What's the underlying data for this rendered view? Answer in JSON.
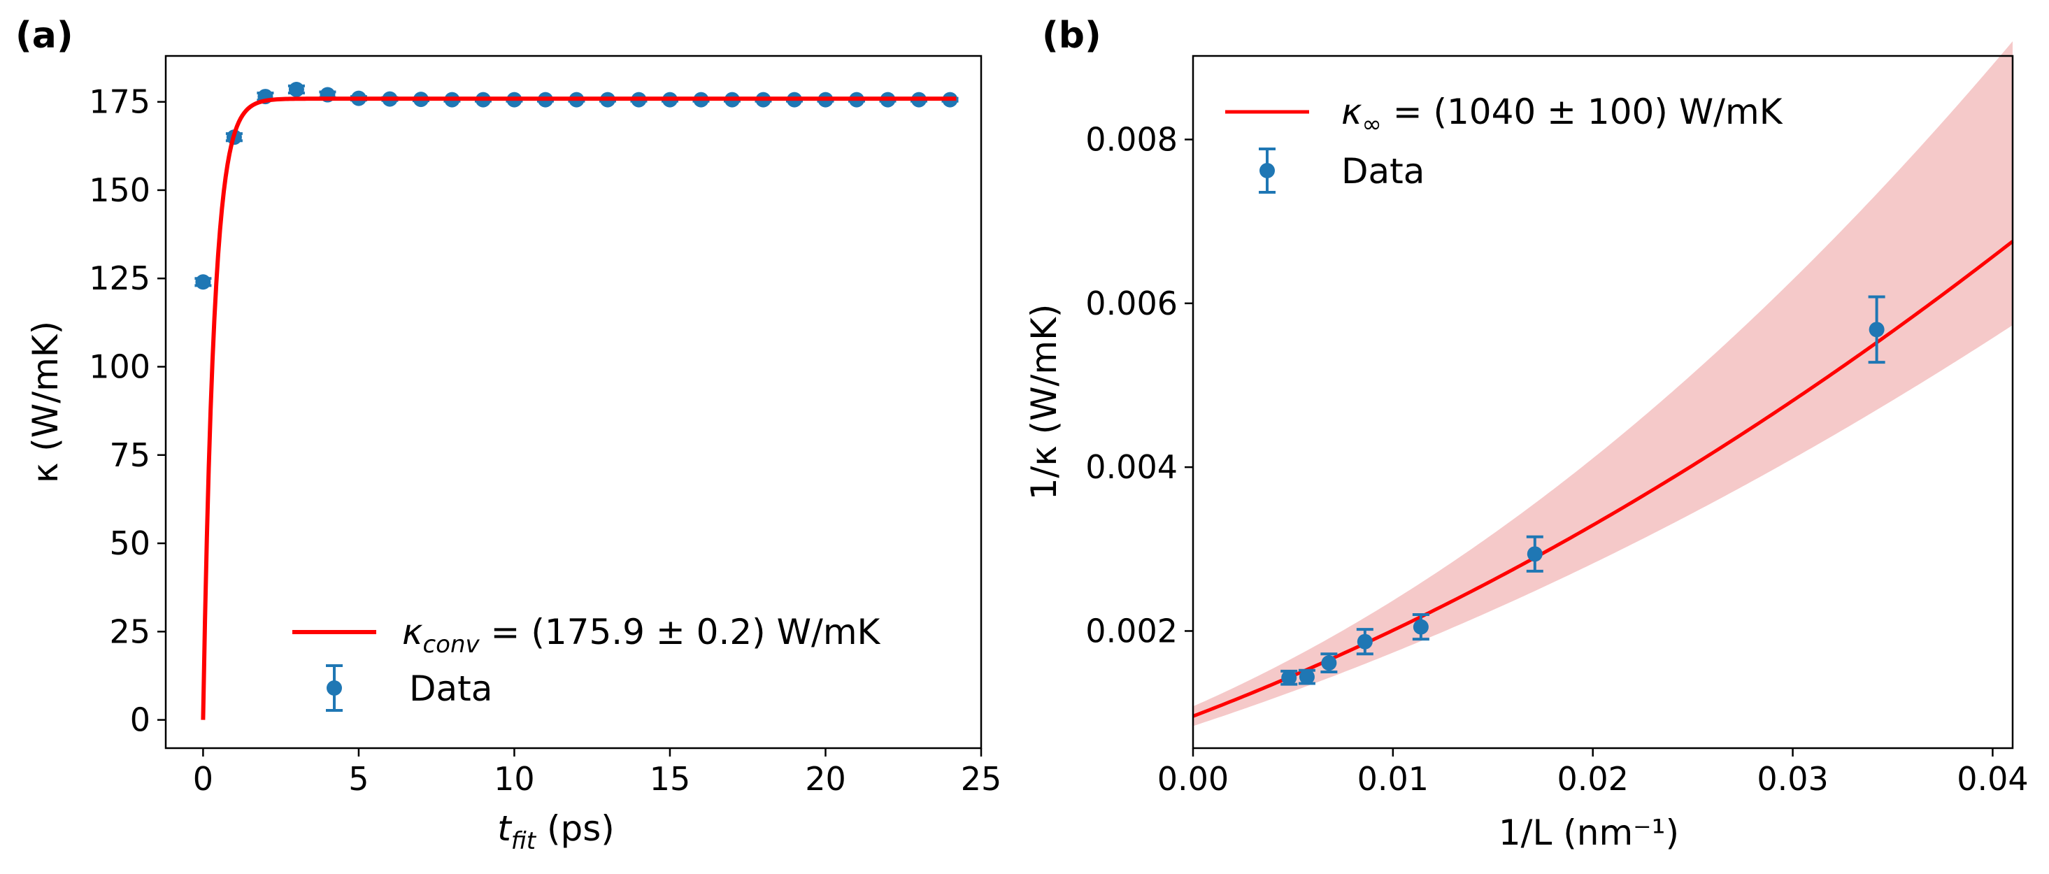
{
  "colors": {
    "fit": "#ff0000",
    "data": "#1f77b4",
    "band": "#f5c9c9",
    "axis": "#000000"
  },
  "chart_data": [
    {
      "panel": "(a)",
      "type": "line",
      "xlabel_main": "t",
      "xlabel_sub": "fit",
      "xlabel_rest": " (ps)",
      "ylabel": "κ (W/mK)",
      "xlim": [
        -1.2,
        25.0
      ],
      "ylim": [
        -8,
        188
      ],
      "xticks": [
        0,
        5,
        10,
        15,
        20,
        25
      ],
      "xtick_labels": [
        "0",
        "5",
        "10",
        "15",
        "20",
        "25"
      ],
      "yticks": [
        0,
        25,
        50,
        75,
        100,
        125,
        150,
        175
      ],
      "ytick_labels": [
        "0",
        "25",
        "50",
        "75",
        "100",
        "125",
        "150",
        "175"
      ],
      "legend": {
        "position": "lower-right",
        "fit_main": "κ",
        "fit_sub": "conv",
        "fit_rest": " = (175.9 ± 0.2) W/mK",
        "data": "Data"
      },
      "fit": {
        "kind": "exp_saturation",
        "amplitude": 175.9,
        "tau": 0.35
      },
      "series": [
        {
          "name": "Data",
          "x": [
            0,
            1,
            2,
            3,
            4,
            5,
            6,
            7,
            8,
            9,
            10,
            11,
            12,
            13,
            14,
            15,
            16,
            17,
            18,
            19,
            20,
            21,
            22,
            23,
            24
          ],
          "y": [
            124.0,
            165.0,
            176.5,
            178.5,
            177.0,
            176.0,
            175.8,
            175.7,
            175.6,
            175.6,
            175.6,
            175.6,
            175.6,
            175.6,
            175.6,
            175.6,
            175.6,
            175.6,
            175.6,
            175.6,
            175.6,
            175.6,
            175.6,
            175.6,
            175.6
          ],
          "err": [
            1.0,
            1.0,
            1.0,
            1.0,
            0.8,
            0.5,
            0.4,
            0.4,
            0.4,
            0.4,
            0.4,
            0.4,
            0.4,
            0.4,
            0.4,
            0.4,
            0.4,
            0.4,
            0.4,
            0.4,
            0.4,
            0.4,
            0.4,
            0.4,
            0.4
          ]
        }
      ]
    },
    {
      "panel": "(b)",
      "type": "line",
      "xlabel": "1/L (nm⁻¹)",
      "ylabel": "1/κ (W/mK)",
      "xlim": [
        0.0,
        0.041
      ],
      "ylim": [
        0.00057,
        0.00902
      ],
      "xticks": [
        0.0,
        0.01,
        0.02,
        0.03,
        0.04
      ],
      "xtick_labels": [
        "0.00",
        "0.01",
        "0.02",
        "0.03",
        "0.04"
      ],
      "yticks": [
        0.002,
        0.004,
        0.006,
        0.008
      ],
      "ytick_labels": [
        "0.002",
        "0.004",
        "0.006",
        "0.008"
      ],
      "legend": {
        "position": "upper-left",
        "fit_main": "κ",
        "fit_sub": "∞",
        "fit_rest": " = (1040 ± 100) W/mK",
        "data": "Data"
      },
      "fit": {
        "kind": "quadratic",
        "c0": 0.00096,
        "c1": 0.093,
        "c2": 1.18
      },
      "band": {
        "upper": {
          "c0": 0.00108,
          "c1": 0.107,
          "c2": 2.22
        },
        "lower": {
          "c0": 0.00084,
          "c1": 0.08,
          "c2": 0.96
        }
      },
      "series": [
        {
          "name": "Data",
          "x": [
            0.0048,
            0.0057,
            0.0068,
            0.0086,
            0.0114,
            0.0171,
            0.0342
          ],
          "y": [
            0.00143,
            0.00144,
            0.00161,
            0.00187,
            0.00205,
            0.00294,
            0.00568
          ],
          "err": [
            8e-05,
            8e-05,
            0.00011,
            0.00015,
            0.00015,
            0.00021,
            0.0004
          ]
        }
      ]
    }
  ]
}
